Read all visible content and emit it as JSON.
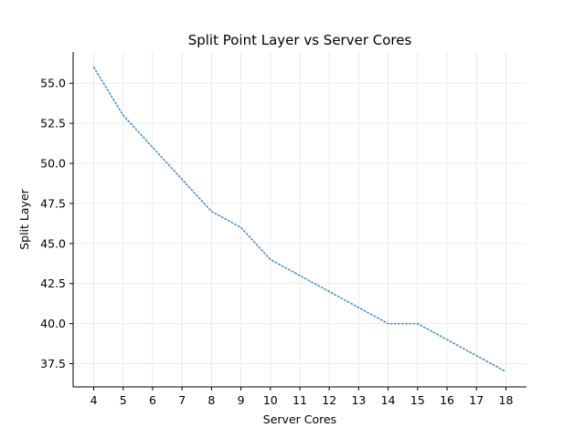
{
  "chart_data": {
    "type": "line",
    "title": "Split Point Layer vs Server Cores",
    "xlabel": "Server Cores",
    "ylabel": "Split Layer",
    "x": [
      4,
      5,
      6,
      7,
      8,
      9,
      10,
      11,
      12,
      13,
      14,
      15,
      16,
      17,
      18
    ],
    "series": [
      {
        "values": [
          56,
          53,
          51,
          49,
          47,
          46,
          44,
          43,
          42,
          41,
          40,
          40,
          39,
          38,
          37
        ]
      }
    ],
    "xticks": [
      "4",
      "5",
      "6",
      "7",
      "8",
      "9",
      "10",
      "11",
      "12",
      "13",
      "14",
      "15",
      "16",
      "17",
      "18"
    ],
    "yticks": [
      "37.5",
      "40.0",
      "42.5",
      "45.0",
      "47.5",
      "50.0",
      "52.5",
      "55.0"
    ],
    "xlim": [
      3.3,
      18.7
    ],
    "ylim": [
      36.05,
      56.95
    ],
    "grid": true,
    "line_style": "dotted",
    "line_color": "#4a90c8",
    "grid_color": "#ebebeb"
  }
}
